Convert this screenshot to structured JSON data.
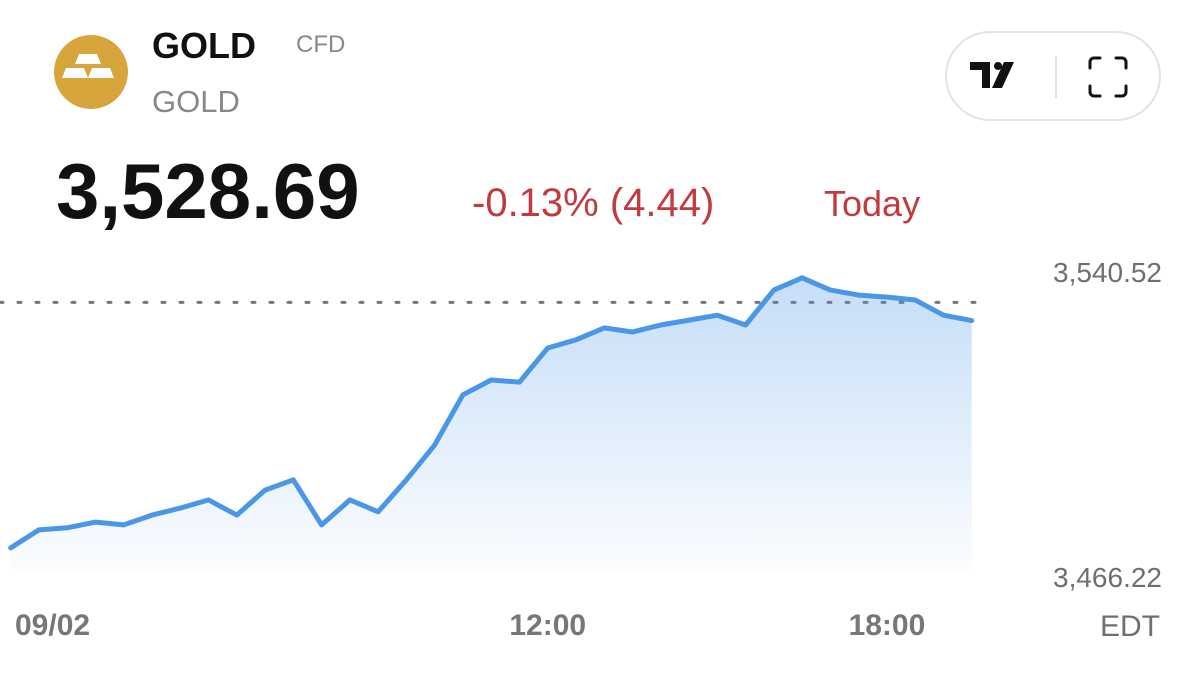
{
  "header": {
    "symbol": "GOLD",
    "tag": "CFD",
    "name": "GOLD",
    "price": "3,528.69",
    "change": "-0.13% (4.44)",
    "period": "Today"
  },
  "chart_data": {
    "type": "line",
    "x": [
      2.5,
      3,
      3.5,
      4,
      4.5,
      5,
      5.5,
      6,
      6.5,
      7,
      7.5,
      8,
      8.5,
      9,
      9.5,
      10,
      10.5,
      11,
      11.5,
      12,
      12.5,
      13,
      13.5,
      14,
      14.5,
      15,
      15.5,
      16,
      16.5,
      17,
      17.5,
      18,
      18.5,
      19,
      19.5
    ],
    "series": [
      {
        "color": "#4a97e8",
        "values": [
          3473.3,
          3477.7,
          3478.2,
          3479.6,
          3478.9,
          3481.3,
          3483.0,
          3485.0,
          3481.3,
          3487.4,
          3489.9,
          3478.9,
          3485.0,
          3482.1,
          3489.9,
          3498.4,
          3510.6,
          3514.2,
          3513.7,
          3522.0,
          3524.0,
          3526.9,
          3525.9,
          3527.6,
          3528.8,
          3530.0,
          3527.6,
          3536.1,
          3539.1,
          3536.1,
          3534.9,
          3534.4,
          3533.7,
          3530.0,
          3528.69
        ]
      }
    ],
    "xlim": [
      2.4,
      20
    ],
    "ylim": [
      3466.22,
      3540.52
    ],
    "yticks": [
      {
        "value": 3540.52,
        "label": "3,540.52"
      },
      {
        "value": 3466.22,
        "label": "3,466.22"
      }
    ],
    "xticks": [
      {
        "value": 2.5,
        "label": "09/02"
      },
      {
        "value": 12,
        "label": "12:00"
      },
      {
        "value": 18,
        "label": "18:00"
      }
    ],
    "timezone": "EDT",
    "reference_line": 3533.13,
    "fill": true
  }
}
